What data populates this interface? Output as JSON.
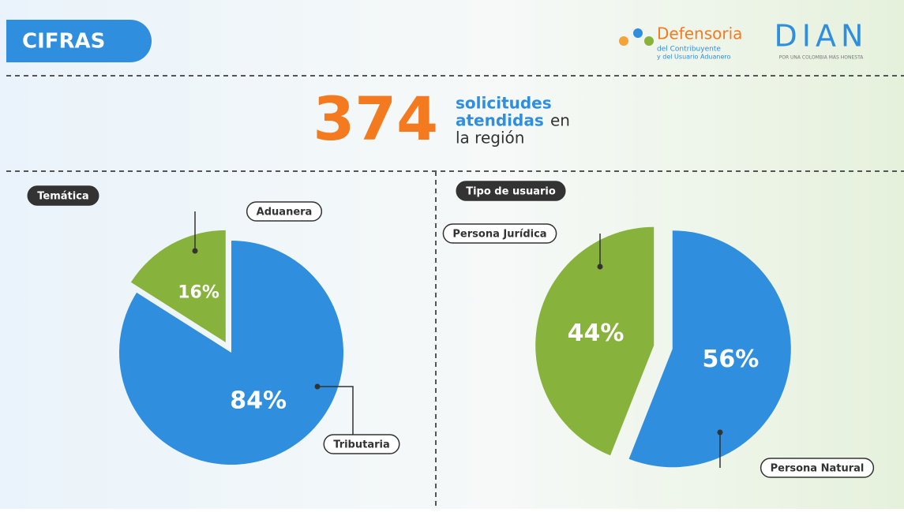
{
  "header": {
    "title": "CIFRAS",
    "logo1": {
      "name": "Defensoria",
      "line1": "del Contribuyente",
      "line2": "y del Usuario Aduanero"
    },
    "logo2": {
      "name": "DIAN",
      "slogan": "POR UNA COLOMBIA MÁS HONESTA"
    }
  },
  "headline": {
    "number": "374",
    "word1": "solicitudes",
    "word2": "atendidas",
    "word3": "en",
    "word4": "la región"
  },
  "chart_data": [
    {
      "type": "pie",
      "title": "Temática",
      "categories": [
        "Tributaria",
        "Aduanera"
      ],
      "values": [
        84,
        16
      ],
      "value_labels": [
        "84%",
        "16%"
      ],
      "colors": [
        "#2f8ede",
        "#87b23c"
      ]
    },
    {
      "type": "pie",
      "title": "Tipo de usuario",
      "categories": [
        "Persona Natural",
        "Persona Jurídica"
      ],
      "values": [
        56,
        44
      ],
      "value_labels": [
        "56%",
        "44%"
      ],
      "colors": [
        "#2f8ede",
        "#87b23c"
      ]
    }
  ]
}
